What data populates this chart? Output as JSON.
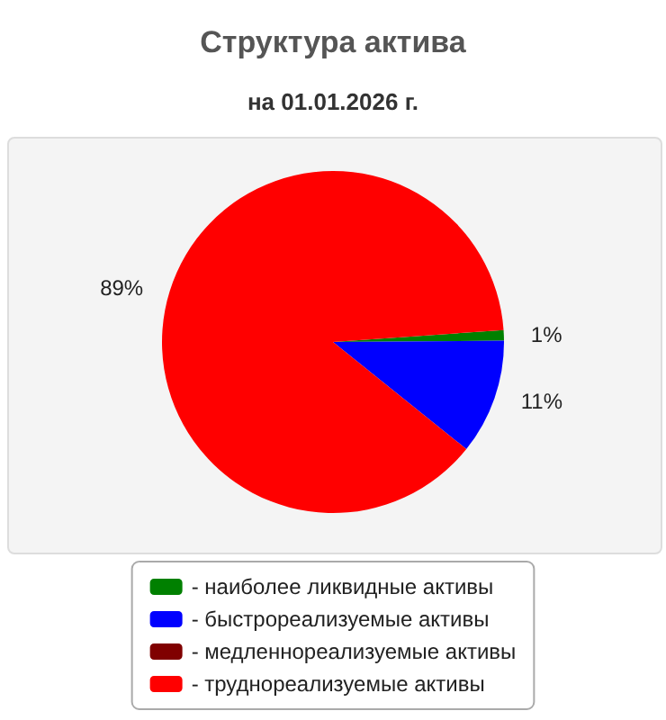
{
  "chart_data": {
    "type": "pie",
    "title": "Структура актива",
    "subtitle": "на 01.01.2026 г.",
    "categories": [
      "- наиболее ликвидные активы",
      "- быстрореализуемые активы",
      "- медленнореализуемые активы",
      "- труднореализуемые активы"
    ],
    "values": [
      1,
      11,
      0,
      89
    ],
    "colors": [
      "#008000",
      "#0000ff",
      "#800000",
      "#ff0000"
    ],
    "value_labels": [
      "1%",
      "11%",
      null,
      "89%"
    ],
    "legend": "bottom"
  }
}
